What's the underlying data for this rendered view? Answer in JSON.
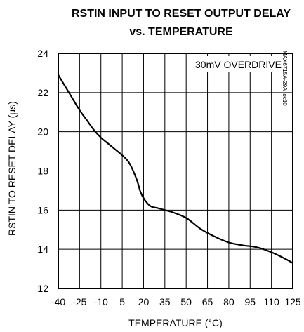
{
  "chart_data": {
    "type": "line",
    "title_line1": "RSTIN INPUT TO RESET OUTPUT DELAY",
    "title_line2": "vs. TEMPERATURE",
    "xlabel": "TEMPERATURE (°C)",
    "ylabel": "RSTIN TO RESET DELAY (µs)",
    "annotation": "30mV OVERDRIVE",
    "figure_code": "MAX6715A-29A toc10",
    "xlim": [
      -40,
      125
    ],
    "ylim": [
      12,
      24
    ],
    "xticks": [
      -40,
      -25,
      -10,
      5,
      20,
      35,
      50,
      65,
      80,
      95,
      110,
      125
    ],
    "yticks": [
      12,
      14,
      16,
      18,
      20,
      22,
      24
    ],
    "grid": true,
    "series": [
      {
        "x": [
          -40,
          -35,
          -30,
          -25,
          -20,
          -15,
          -10,
          -5,
          0,
          5,
          10,
          15,
          18,
          21,
          25,
          30,
          35,
          40,
          50,
          60,
          70,
          80,
          90,
          100,
          110,
          120,
          125
        ],
        "y": [
          22.9,
          22.3,
          21.7,
          21.1,
          20.6,
          20.1,
          19.7,
          19.4,
          19.1,
          18.8,
          18.4,
          17.6,
          16.9,
          16.5,
          16.2,
          16.1,
          16.0,
          15.9,
          15.6,
          15.05,
          14.65,
          14.35,
          14.2,
          14.1,
          13.85,
          13.5,
          13.3
        ]
      }
    ]
  }
}
